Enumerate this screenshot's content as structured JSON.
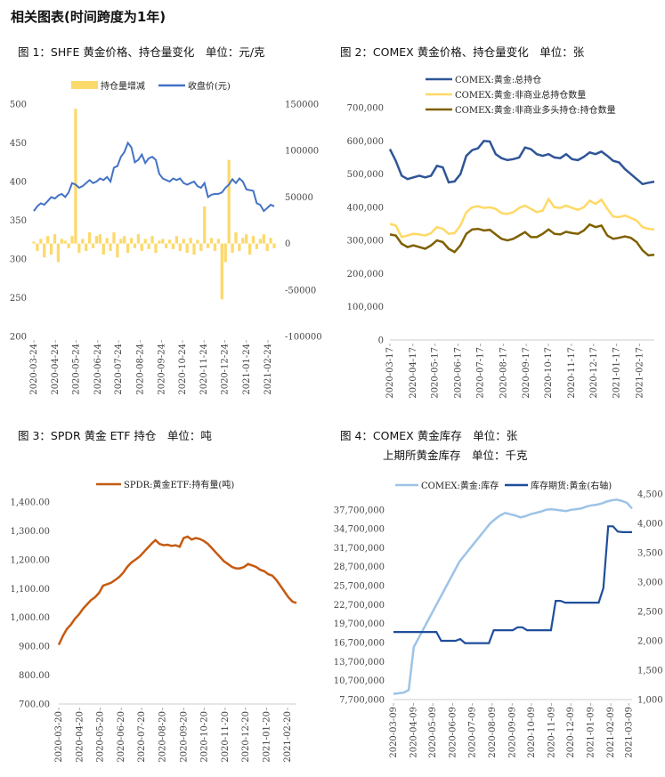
{
  "page_title": "相关图表(时间跨度为1年)",
  "chart_data": [
    {
      "type": "bar+line",
      "caption": "图 1：SHFE 黄金价格、持仓量变化　单位：元/克",
      "legend": [
        "持仓量增减",
        "收盘价(元)"
      ],
      "colors": {
        "bars": "#fcd96b",
        "line": "#4472c4"
      },
      "x_ticks": [
        "2020-03-24",
        "2020-04-24",
        "2020-05-24",
        "2020-06-24",
        "2020-07-24",
        "2020-08-24",
        "2020-09-24",
        "2020-10-24",
        "2020-11-24",
        "2020-12-24",
        "2021-01-24",
        "2021-02-24"
      ],
      "y_left_ticks": [
        "500",
        "450",
        "400",
        "350",
        "300",
        "250",
        "200"
      ],
      "y_right_ticks": [
        "150000",
        "100000",
        "50000",
        "0",
        "-50000",
        "-100000"
      ],
      "ylim_left": [
        200,
        500
      ],
      "ylim_right": [
        -100000,
        150000
      ],
      "series": [
        {
          "name": "收盘价(元)",
          "axis": "left",
          "x_start": "2020-03-24",
          "x_end": "2021-03-05",
          "values": [
            362,
            368,
            372,
            370,
            375,
            380,
            378,
            382,
            384,
            380,
            386,
            398,
            396,
            392,
            394,
            398,
            402,
            398,
            400,
            404,
            402,
            406,
            400,
            418,
            420,
            432,
            438,
            450,
            444,
            425,
            428,
            435,
            424,
            430,
            432,
            428,
            410,
            404,
            402,
            400,
            404,
            402,
            404,
            398,
            396,
            398,
            400,
            394,
            392,
            398,
            380,
            383,
            384,
            384,
            386,
            392,
            396,
            403,
            398,
            404,
            400,
            390,
            389,
            388,
            372,
            370,
            362,
            366,
            370,
            368
          ]
        },
        {
          "name": "持仓量增减",
          "axis": "right",
          "x_start": "2020-03-24",
          "x_end": "2021-03-05",
          "values": [
            2000,
            -8000,
            5000,
            -15000,
            8000,
            -12000,
            10000,
            -20000,
            5000,
            3000,
            -5000,
            8000,
            145000,
            -10000,
            5000,
            -8000,
            12000,
            -5000,
            8000,
            10000,
            -12000,
            6000,
            -8000,
            12000,
            -15000,
            5000,
            8000,
            -10000,
            6000,
            -5000,
            10000,
            -8000,
            5000,
            -6000,
            8000,
            -10000,
            3000,
            5000,
            -5000,
            4000,
            -6000,
            8000,
            -8000,
            5000,
            -10000,
            6000,
            -12000,
            4000,
            -8000,
            40000,
            -5000,
            6000,
            -8000,
            5000,
            -60000,
            -20000,
            90000,
            -10000,
            12000,
            -8000,
            6000,
            10000,
            -12000,
            8000,
            -6000,
            5000,
            10000,
            -8000,
            6000,
            -5000
          ]
        }
      ]
    },
    {
      "type": "line",
      "caption": "图 2：COMEX 黄金价格、持仓量变化　单位：张",
      "legend": [
        "COMEX:黄金:总持仓",
        "COMEX:黄金:非商业总持仓数量",
        "COMEX:黄金:非商业多头持仓:持仓数量"
      ],
      "colors": [
        "#2f5597",
        "#ffd966",
        "#7f6000"
      ],
      "x_ticks": [
        "2020-03-17",
        "2020-04-17",
        "2020-05-17",
        "2020-06-17",
        "2020-07-17",
        "2020-08-17",
        "2020-09-17",
        "2020-10-17",
        "2020-11-17",
        "2020-12-17",
        "2021-01-17",
        "2021-02-17"
      ],
      "y_ticks": [
        "700,000",
        "600,000",
        "500,000",
        "400,000",
        "300,000",
        "200,000",
        "100,000",
        "0"
      ],
      "ylim": [
        0,
        700000
      ],
      "x_start": "2020-03-17",
      "x_end": "2021-03-09",
      "series": [
        {
          "name": "COMEX:黄金:总持仓",
          "values": [
            575000,
            540000,
            495000,
            485000,
            490000,
            495000,
            490000,
            495000,
            525000,
            520000,
            475000,
            478000,
            500000,
            555000,
            572000,
            578000,
            600000,
            598000,
            560000,
            548000,
            542000,
            545000,
            550000,
            580000,
            575000,
            560000,
            555000,
            560000,
            550000,
            548000,
            560000,
            545000,
            542000,
            552000,
            565000,
            560000,
            568000,
            555000,
            540000,
            535000,
            515000,
            500000,
            485000,
            470000,
            474000,
            477000
          ]
        },
        {
          "name": "COMEX:黄金:非商业总持仓数量",
          "values": [
            350000,
            345000,
            310000,
            315000,
            320000,
            318000,
            315000,
            322000,
            340000,
            335000,
            320000,
            322000,
            345000,
            385000,
            400000,
            403000,
            398000,
            400000,
            395000,
            382000,
            380000,
            385000,
            398000,
            405000,
            395000,
            385000,
            390000,
            425000,
            400000,
            398000,
            405000,
            398000,
            392000,
            400000,
            420000,
            410000,
            423000,
            395000,
            372000,
            370000,
            375000,
            368000,
            360000,
            340000,
            335000,
            333000
          ]
        },
        {
          "name": "COMEX:黄金:非商业多头持仓:持仓数量",
          "values": [
            318000,
            315000,
            290000,
            280000,
            285000,
            280000,
            275000,
            285000,
            300000,
            295000,
            275000,
            265000,
            285000,
            320000,
            333000,
            335000,
            330000,
            332000,
            318000,
            305000,
            300000,
            305000,
            315000,
            325000,
            310000,
            310000,
            320000,
            333000,
            320000,
            318000,
            326000,
            322000,
            320000,
            330000,
            348000,
            340000,
            345000,
            315000,
            305000,
            308000,
            312000,
            308000,
            295000,
            270000,
            255000,
            257000
          ]
        }
      ]
    },
    {
      "type": "line",
      "caption": "图 3：SPDR 黄金 ETF 持仓　单位：吨",
      "legend": [
        "SPDR:黄金ETF:持有量(吨)"
      ],
      "colors": [
        "#c55a11"
      ],
      "x_ticks": [
        "2020-03-20",
        "2020-04-20",
        "2020-05-20",
        "2020-06-20",
        "2020-07-20",
        "2020-08-20",
        "2020-09-20",
        "2020-10-20",
        "2020-11-20",
        "2020-12-20",
        "2021-01-20",
        "2021-02-20"
      ],
      "y_ticks": [
        "1,400.00",
        "1,300.00",
        "1,200.00",
        "1,100.00",
        "1,000.00",
        "900.00",
        "800.00",
        "700.00"
      ],
      "ylim": [
        700,
        1400
      ],
      "x_start": "2020-03-20",
      "x_end": "2021-03-05",
      "series": [
        {
          "name": "SPDR:黄金ETF:持有量(吨)",
          "values": [
            905,
            935,
            960,
            975,
            995,
            1010,
            1030,
            1045,
            1060,
            1070,
            1085,
            1110,
            1115,
            1120,
            1130,
            1140,
            1155,
            1175,
            1190,
            1200,
            1210,
            1225,
            1240,
            1255,
            1268,
            1255,
            1250,
            1252,
            1248,
            1250,
            1245,
            1275,
            1280,
            1270,
            1275,
            1272,
            1265,
            1255,
            1240,
            1225,
            1210,
            1195,
            1185,
            1175,
            1170,
            1170,
            1175,
            1185,
            1180,
            1175,
            1165,
            1160,
            1150,
            1145,
            1130,
            1110,
            1090,
            1070,
            1055,
            1050
          ]
        }
      ]
    },
    {
      "type": "line",
      "caption": "图 4：COMEX 黄金库存　单位：张",
      "caption2": "上期所黄金库存　单位：千克",
      "legend": [
        "COMEX:黄金:库存",
        "库存期货:黄金(右轴)"
      ],
      "colors": [
        "#9dc3e6",
        "#1f4e9c"
      ],
      "x_ticks": [
        "2020-03-09",
        "2020-04-09",
        "2020-05-09",
        "2020-06-09",
        "2020-07-09",
        "2020-08-09",
        "2020-09-09",
        "2020-10-09",
        "2020-11-09",
        "2020-12-09",
        "2021-01-09",
        "2021-02-09",
        "2021-03-09"
      ],
      "y_left_ticks": [
        "37,700,000",
        "34,700,000",
        "31,700,000",
        "28,700,000",
        "25,700,000",
        "22,700,000",
        "19,700,000",
        "16,700,000",
        "13,700,000",
        "10,700,000",
        "7,700,000"
      ],
      "y_right_ticks": [
        "4,500",
        "4,000",
        "3,500",
        "3,000",
        "2,500",
        "2,000",
        "1,500",
        "1,000"
      ],
      "ylim_left": [
        7700000,
        40200000
      ],
      "ylim_right": [
        1000,
        4500
      ],
      "series": [
        {
          "name": "COMEX:黄金:库存",
          "axis": "left",
          "x_start": "2020-03-09",
          "x_end": "2021-03-14",
          "values": [
            8600000,
            8700000,
            8800000,
            9200000,
            16000000,
            17500000,
            19000000,
            20500000,
            22000000,
            23500000,
            25000000,
            26500000,
            28000000,
            29500000,
            30500000,
            31500000,
            32500000,
            33500000,
            34500000,
            35500000,
            36200000,
            36800000,
            37200000,
            37000000,
            36800000,
            36500000,
            36700000,
            37000000,
            37200000,
            37400000,
            37700000,
            37800000,
            37700000,
            37600000,
            37500000,
            37700000,
            37800000,
            37900000,
            38200000,
            38400000,
            38500000,
            38700000,
            39000000,
            39200000,
            39300000,
            39100000,
            38800000,
            37900000
          ]
        },
        {
          "name": "库存期货:黄金(右轴)",
          "axis": "right",
          "x_start": "2020-03-09",
          "x_end": "2021-03-14",
          "values": [
            2150,
            2150,
            2150,
            2150,
            2150,
            2150,
            2150,
            2150,
            2150,
            2150,
            2000,
            2000,
            2000,
            2000,
            2030,
            1960,
            1960,
            1960,
            1960,
            1960,
            1960,
            2180,
            2180,
            2180,
            2180,
            2180,
            2230,
            2230,
            2180,
            2180,
            2180,
            2180,
            2180,
            2180,
            2680,
            2680,
            2650,
            2650,
            2650,
            2650,
            2650,
            2650,
            2650,
            2650,
            2900,
            3950,
            3950,
            3860,
            3850,
            3850,
            3850
          ]
        }
      ]
    }
  ]
}
